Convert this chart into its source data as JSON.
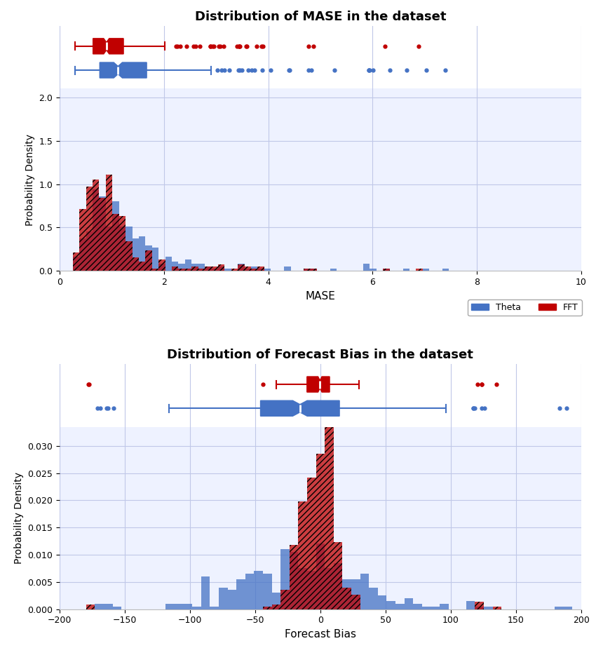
{
  "title_mase": "Distribution of MASE in the dataset",
  "title_bias": "Distribution of Forecast Bias in the dataset",
  "xlabel_mase": "MASE",
  "xlabel_bias": "Forecast Bias",
  "ylabel": "Probability Density",
  "legend_labels": [
    "Theta",
    "FFT"
  ],
  "theta_color": "#4472C4",
  "fft_color": "#C00000",
  "fft_hatch": "////",
  "theta_alpha": 0.75,
  "fft_alpha": 0.75,
  "mase_xlim": [
    0,
    10
  ],
  "mase_ylim": [
    0,
    2.1
  ],
  "bias_xlim": [
    -200,
    200
  ],
  "bias_ylim": [
    0,
    0.0335
  ],
  "mase_xticks": [
    0,
    2,
    4,
    6,
    8,
    10
  ],
  "mase_yticks": [
    0,
    0.5,
    1.0,
    1.5,
    2.0
  ],
  "bias_xticks": [
    -200,
    -150,
    -100,
    -50,
    0,
    50,
    100,
    150,
    200
  ],
  "bias_yticks": [
    0,
    0.005,
    0.01,
    0.015,
    0.02,
    0.025,
    0.03
  ],
  "background_color": "#eef2ff",
  "grid_color": "#c0c8e8",
  "mase_bins": 80,
  "bias_bins": 60,
  "seed": 42
}
